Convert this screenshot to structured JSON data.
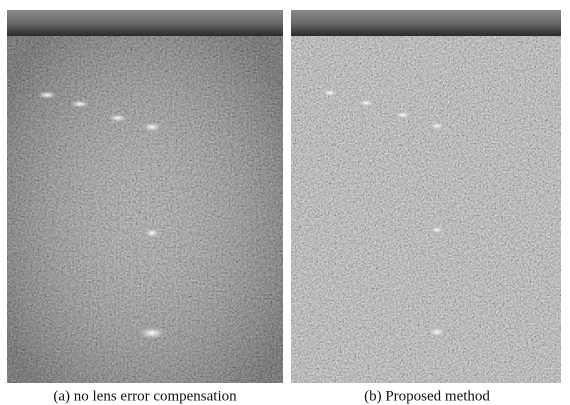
{
  "figure": {
    "panels": [
      {
        "caption": "(a) no lens error compensation"
      },
      {
        "caption": "(b) Proposed method"
      }
    ]
  }
}
